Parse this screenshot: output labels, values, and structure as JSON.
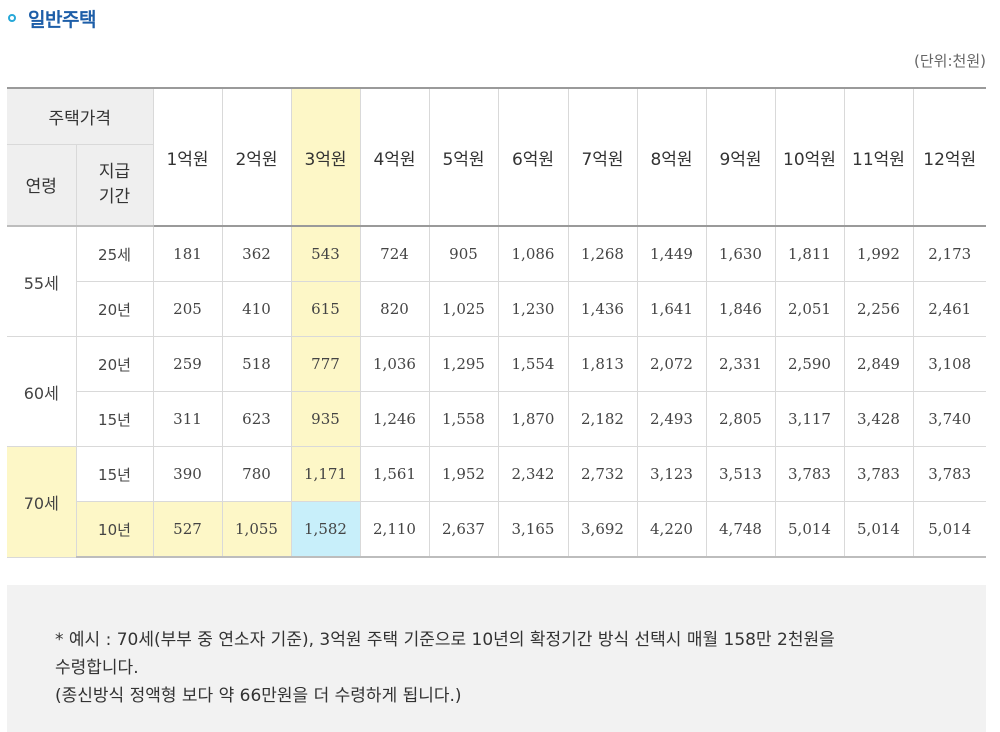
{
  "section": {
    "title": "일반주택",
    "unit": "(단위:천원)"
  },
  "table": {
    "header": {
      "price": "주택가격",
      "age": "연령",
      "period": "지급\n기간",
      "amounts": [
        "1억원",
        "2억원",
        "3억원",
        "4억원",
        "5억원",
        "6억원",
        "7억원",
        "8억원",
        "9억원",
        "10억원",
        "11억원",
        "12억원"
      ]
    },
    "rows": [
      {
        "age": "55세",
        "period": "25세",
        "values": [
          "181",
          "362",
          "543",
          "724",
          "905",
          "1,086",
          "1,268",
          "1,449",
          "1,630",
          "1,811",
          "1,992",
          "2,173"
        ]
      },
      {
        "period": "20년",
        "values": [
          "205",
          "410",
          "615",
          "820",
          "1,025",
          "1,230",
          "1,436",
          "1,641",
          "1,846",
          "2,051",
          "2,256",
          "2,461"
        ]
      },
      {
        "age": "60세",
        "period": "20년",
        "values": [
          "259",
          "518",
          "777",
          "1,036",
          "1,295",
          "1,554",
          "1,813",
          "2,072",
          "2,331",
          "2,590",
          "2,849",
          "3,108"
        ]
      },
      {
        "period": "15년",
        "values": [
          "311",
          "623",
          "935",
          "1,246",
          "1,558",
          "1,870",
          "2,182",
          "2,493",
          "2,805",
          "3,117",
          "3,428",
          "3,740"
        ]
      },
      {
        "age": "70세",
        "period": "15년",
        "values": [
          "390",
          "780",
          "1,171",
          "1,561",
          "1,952",
          "2,342",
          "2,732",
          "3,123",
          "3,513",
          "3,783",
          "3,783",
          "3,783"
        ]
      },
      {
        "period": "10년",
        "values": [
          "527",
          "1,055",
          "1,582",
          "2,110",
          "2,637",
          "3,165",
          "3,692",
          "4,220",
          "4,748",
          "5,014",
          "5,014",
          "5,014"
        ]
      }
    ],
    "highlight_color": "#fdf7c7",
    "focus_color": "#c8effa"
  },
  "note": {
    "line1": "* 예시 : 70세(부부 중 연소자 기준), 3억원 주택 기준으로 10년의 확정기간 방식 선택시 매월 158만 2천원을",
    "line2": "수령합니다.",
    "line3": "(종신방식 정액형 보다 약 66만원을 더 수령하게 됩니다.)"
  }
}
